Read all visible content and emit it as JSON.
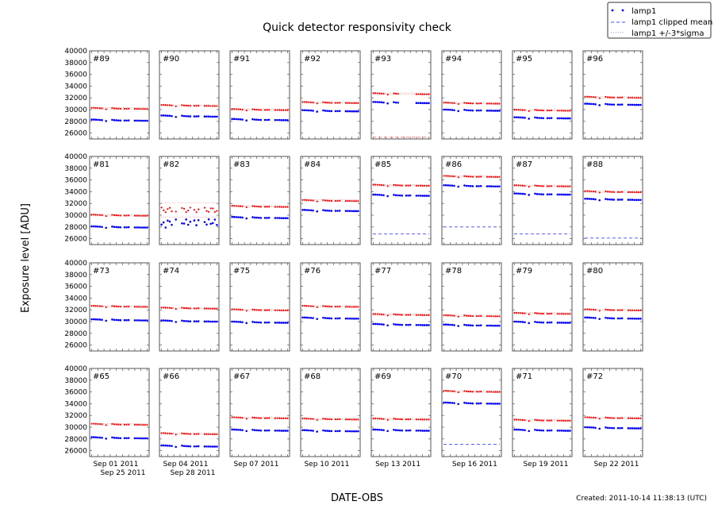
{
  "chart_data": {
    "type": "scatter",
    "title": "Quick detector responsivity check",
    "xlabel": "DATE-OBS",
    "ylabel": "Exposure level [ADU]",
    "ylim": [
      25000,
      40000
    ],
    "yticks": [
      26000,
      28000,
      30000,
      32000,
      34000,
      36000,
      38000,
      40000
    ],
    "xlim": [
      "2011-08-31",
      "2011-09-29"
    ],
    "xtick_labels": [
      "Sep 01 2011",
      "Sep 04 2011",
      "Sep 07 2011",
      "Sep 10 2011",
      "Sep 13 2011",
      "Sep 16 2011",
      "Sep 19 2011",
      "Sep 22 2011",
      "Sep 25 2011",
      "Sep 28 2011"
    ],
    "xtick_days": [
      1,
      4,
      7,
      10,
      13,
      16,
      19,
      22,
      25,
      28
    ],
    "legend": {
      "placement": "top-right",
      "entries": [
        "lamp1",
        "lamp1 clipped mean",
        "lamp1 +/-3*sigma"
      ]
    },
    "colors": {
      "lamp1": "#0000ff",
      "red_series": "#ff0000"
    },
    "obs_days": [
      1,
      2,
      3,
      4,
      5,
      6,
      8,
      11,
      12,
      13,
      14,
      15,
      17,
      18,
      19,
      22,
      23,
      24,
      25,
      26,
      27,
      28
    ],
    "obs_offsets": [
      100,
      100,
      80,
      60,
      40,
      0,
      -150,
      60,
      0,
      -20,
      -40,
      -60,
      -60,
      -60,
      -40,
      -80,
      -80,
      -80,
      -100,
      -100,
      -100,
      -100
    ],
    "panels": [
      {
        "label": "#89",
        "lamp1": 28200,
        "red": 30200
      },
      {
        "label": "#90",
        "lamp1": 28900,
        "red": 30700
      },
      {
        "label": "#91",
        "lamp1": 28300,
        "red": 30000
      },
      {
        "label": "#92",
        "lamp1": 29800,
        "red": 31200
      },
      {
        "label": "#93",
        "lamp1": 31200,
        "red": 32700,
        "mean": 25300,
        "mean_color": "#ff6666",
        "gap": [
          9,
          20
        ]
      },
      {
        "label": "#94",
        "lamp1": 29900,
        "red": 31100
      },
      {
        "label": "#95",
        "lamp1": 28600,
        "red": 29900
      },
      {
        "label": "#96",
        "lamp1": 30900,
        "red": 32100
      },
      {
        "label": "#81",
        "lamp1": 28000,
        "red": 30000
      },
      {
        "label": "#82",
        "lamp1": 28800,
        "red": 30900,
        "scatter": true,
        "sigma": [
          29700,
          32100
        ]
      },
      {
        "label": "#83",
        "lamp1": 29600,
        "red": 31500
      },
      {
        "label": "#84",
        "lamp1": 30800,
        "red": 32500
      },
      {
        "label": "#85",
        "lamp1": 33400,
        "red": 35100,
        "mean": 26800,
        "mean_color": "#4444ff"
      },
      {
        "label": "#86",
        "lamp1": 35000,
        "red": 36600,
        "mean": 28000,
        "mean_color": "#4444ff"
      },
      {
        "label": "#87",
        "lamp1": 33600,
        "red": 35000,
        "mean": 26800,
        "mean_color": "#4444ff"
      },
      {
        "label": "#88",
        "lamp1": 32700,
        "red": 34000,
        "mean": 26100,
        "mean_color": "#4444ff"
      },
      {
        "label": "#73",
        "lamp1": 30300,
        "red": 32600
      },
      {
        "label": "#74",
        "lamp1": 30100,
        "red": 32300
      },
      {
        "label": "#75",
        "lamp1": 29900,
        "red": 32000
      },
      {
        "label": "#76",
        "lamp1": 30600,
        "red": 32600
      },
      {
        "label": "#77",
        "lamp1": 29500,
        "red": 31200
      },
      {
        "label": "#78",
        "lamp1": 29400,
        "red": 31000
      },
      {
        "label": "#79",
        "lamp1": 29900,
        "red": 31400
      },
      {
        "label": "#80",
        "lamp1": 30600,
        "red": 32000
      },
      {
        "label": "#65",
        "lamp1": 28200,
        "red": 30500
      },
      {
        "label": "#66",
        "lamp1": 26800,
        "red": 28900
      },
      {
        "label": "#67",
        "lamp1": 29500,
        "red": 31600
      },
      {
        "label": "#68",
        "lamp1": 29400,
        "red": 31400
      },
      {
        "label": "#69",
        "lamp1": 29500,
        "red": 31400
      },
      {
        "label": "#70",
        "lamp1": 34100,
        "red": 36100,
        "mean": 27100,
        "mean_color": "#4444ff"
      },
      {
        "label": "#71",
        "lamp1": 29500,
        "red": 31200
      },
      {
        "label": "#72",
        "lamp1": 29900,
        "red": 31600
      }
    ]
  },
  "footer": {
    "created": "Created: 2011-10-14 11:38:13 (UTC)"
  }
}
